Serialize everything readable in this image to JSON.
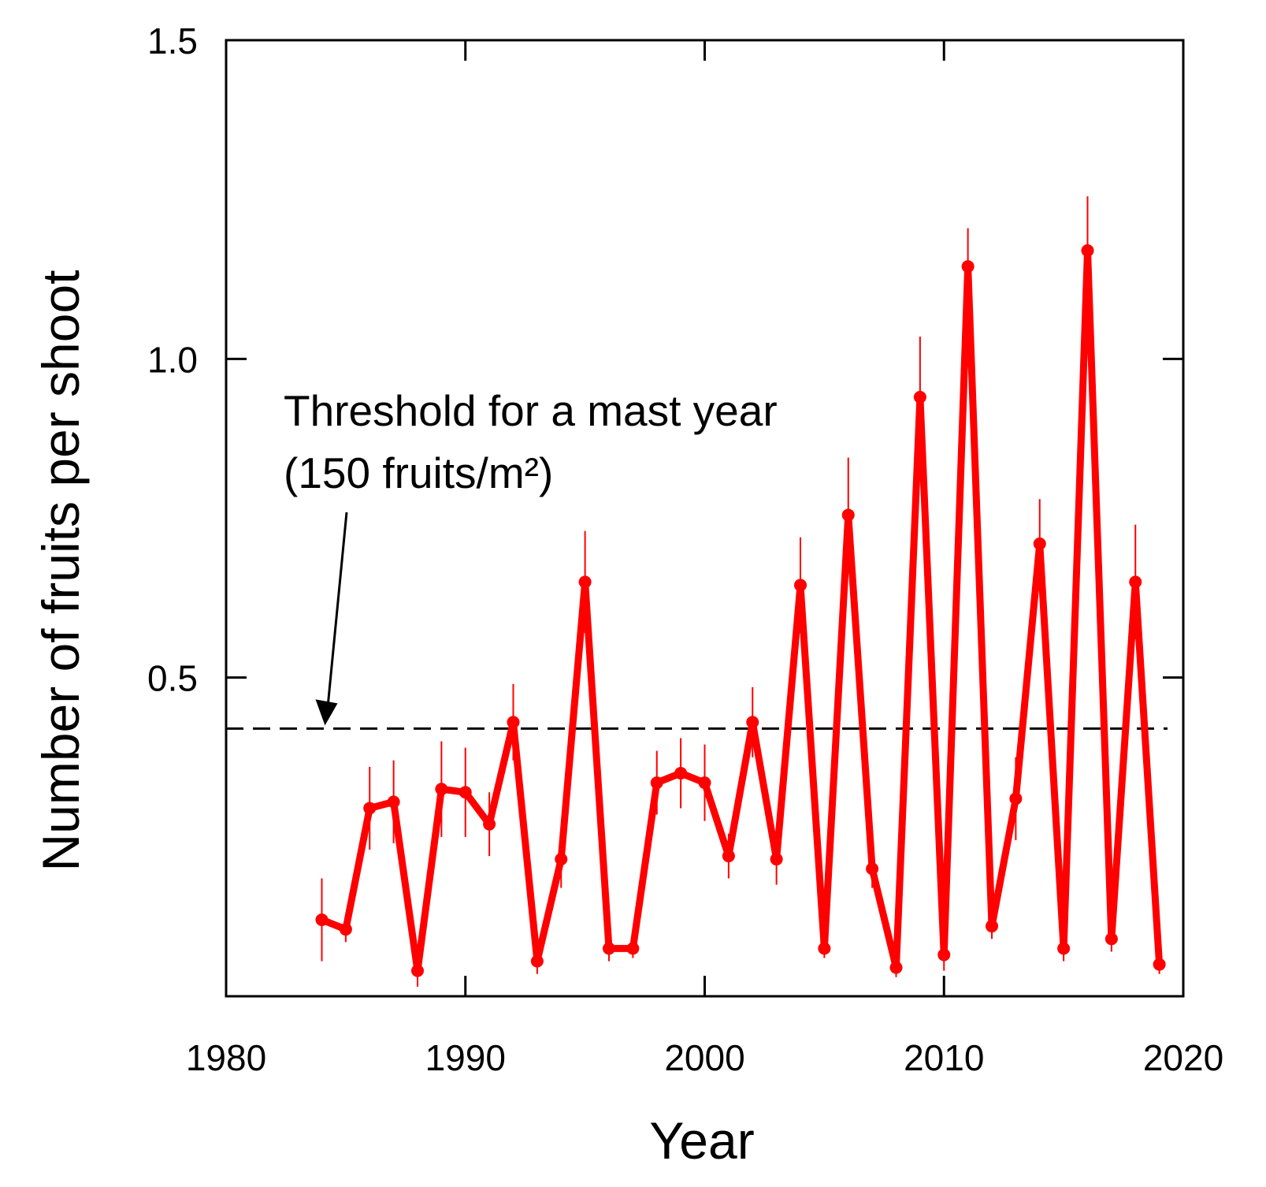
{
  "chart_data": {
    "type": "line",
    "xlabel": "Year",
    "ylabel": "Number of fruits per shoot",
    "xlim": [
      1980,
      2020
    ],
    "ylim": [
      0,
      1.5
    ],
    "x_ticks": [
      "1980",
      "1990",
      "2000",
      "2010",
      "2020"
    ],
    "y_ticks": [
      "0.5",
      "1.0",
      "1.5"
    ],
    "grid": false,
    "series": [
      {
        "color": "#ff0000",
        "x": [
          1984,
          1985,
          1986,
          1987,
          1988,
          1989,
          1990,
          1991,
          1992,
          1993,
          1994,
          1995,
          1996,
          1997,
          1998,
          1999,
          2000,
          2001,
          2002,
          2003,
          2004,
          2005,
          2006,
          2007,
          2008,
          2009,
          2010,
          2011,
          2012,
          2013,
          2014,
          2015,
          2016,
          2017,
          2018,
          2019
        ],
        "y": [
          0.12,
          0.105,
          0.295,
          0.305,
          0.04,
          0.325,
          0.32,
          0.27,
          0.43,
          0.055,
          0.215,
          0.65,
          0.075,
          0.075,
          0.335,
          0.35,
          0.335,
          0.22,
          0.43,
          0.215,
          0.645,
          0.075,
          0.755,
          0.2,
          0.045,
          0.94,
          0.065,
          1.145,
          0.11,
          0.31,
          0.71,
          0.075,
          1.17,
          0.09,
          0.65,
          0.05
        ],
        "err": [
          0.065,
          0.02,
          0.065,
          0.065,
          0.025,
          0.075,
          0.07,
          0.05,
          0.06,
          0.02,
          0.045,
          0.08,
          0.02,
          0.015,
          0.05,
          0.055,
          0.06,
          0.035,
          0.055,
          0.04,
          0.075,
          0.015,
          0.09,
          0.03,
          0.015,
          0.095,
          0.025,
          0.06,
          0.02,
          0.065,
          0.07,
          0.02,
          0.085,
          0.02,
          0.09,
          0.015
        ]
      }
    ],
    "threshold": {
      "y": 0.42,
      "style": "dashed",
      "color": "#000000"
    },
    "annotation": {
      "line1": "Threshold for a mast year",
      "line2": "(150 fruits/m²)",
      "arrow_to_year": 1984
    }
  }
}
